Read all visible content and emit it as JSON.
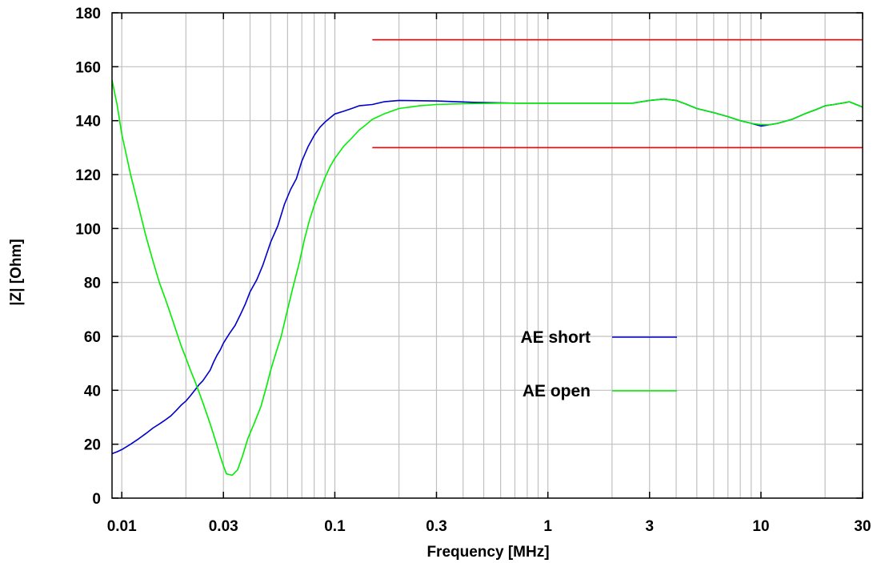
{
  "chart_data": {
    "type": "line",
    "xlabel": "Frequency [MHz]",
    "ylabel": "|Z| [Ohm]",
    "x_scale": "log",
    "xlim": [
      0.009,
      30
    ],
    "ylim": [
      0,
      180
    ],
    "x_ticks": [
      {
        "value": 0.01,
        "label": "0.01"
      },
      {
        "value": 0.03,
        "label": "0.03"
      },
      {
        "value": 0.1,
        "label": "0.1"
      },
      {
        "value": 0.3,
        "label": "0.3"
      },
      {
        "value": 1,
        "label": "1"
      },
      {
        "value": 3,
        "label": "3"
      },
      {
        "value": 10,
        "label": "10"
      },
      {
        "value": 30,
        "label": "30"
      }
    ],
    "y_ticks": [
      {
        "value": 0,
        "label": "0"
      },
      {
        "value": 20,
        "label": "20"
      },
      {
        "value": 40,
        "label": "40"
      },
      {
        "value": 60,
        "label": "60"
      },
      {
        "value": 80,
        "label": "80"
      },
      {
        "value": 100,
        "label": "100"
      },
      {
        "value": 120,
        "label": "120"
      },
      {
        "value": 140,
        "label": "140"
      },
      {
        "value": 160,
        "label": "160"
      },
      {
        "value": 180,
        "label": "180"
      }
    ],
    "grid": true,
    "legend_position": "center-right",
    "series": [
      {
        "name": "AE short",
        "color": "#0000cc",
        "points": [
          [
            0.009,
            16.5
          ],
          [
            0.0095,
            17.2
          ],
          [
            0.01,
            18
          ],
          [
            0.011,
            20
          ],
          [
            0.012,
            22
          ],
          [
            0.013,
            24
          ],
          [
            0.014,
            26
          ],
          [
            0.015,
            27.5
          ],
          [
            0.016,
            29
          ],
          [
            0.017,
            30.5
          ],
          [
            0.018,
            32.5
          ],
          [
            0.019,
            34.5
          ],
          [
            0.02,
            36
          ],
          [
            0.021,
            38
          ],
          [
            0.022,
            40
          ],
          [
            0.023,
            42
          ],
          [
            0.024,
            43.5
          ],
          [
            0.025,
            45.5
          ],
          [
            0.026,
            47.5
          ],
          [
            0.027,
            50.5
          ],
          [
            0.028,
            53
          ],
          [
            0.029,
            55
          ],
          [
            0.03,
            57.5
          ],
          [
            0.032,
            61
          ],
          [
            0.034,
            64
          ],
          [
            0.036,
            68
          ],
          [
            0.038,
            72
          ],
          [
            0.04,
            76.5
          ],
          [
            0.043,
            81
          ],
          [
            0.046,
            86.5
          ],
          [
            0.05,
            95
          ],
          [
            0.054,
            101
          ],
          [
            0.058,
            109
          ],
          [
            0.062,
            114.5
          ],
          [
            0.066,
            118.5
          ],
          [
            0.07,
            125
          ],
          [
            0.075,
            130.5
          ],
          [
            0.08,
            134.5
          ],
          [
            0.085,
            137.5
          ],
          [
            0.09,
            139.5
          ],
          [
            0.1,
            142.5
          ],
          [
            0.11,
            143.5
          ],
          [
            0.12,
            144.5
          ],
          [
            0.13,
            145.5
          ],
          [
            0.15,
            146
          ],
          [
            0.17,
            147
          ],
          [
            0.2,
            147.5
          ],
          [
            0.3,
            147.3
          ],
          [
            0.45,
            146.8
          ],
          [
            0.7,
            146.5
          ],
          [
            1,
            146.5
          ],
          [
            1.5,
            146.5
          ],
          [
            2,
            146.5
          ],
          [
            2.5,
            146.5
          ],
          [
            3,
            147.5
          ],
          [
            3.5,
            148
          ],
          [
            4,
            147.5
          ],
          [
            4.5,
            146
          ],
          [
            5,
            144.5
          ],
          [
            6,
            143
          ],
          [
            7,
            141.5
          ],
          [
            8,
            140
          ],
          [
            9,
            139
          ],
          [
            10,
            138
          ],
          [
            11,
            138.5
          ],
          [
            12,
            139
          ],
          [
            14,
            140.5
          ],
          [
            16,
            142.5
          ],
          [
            18,
            144
          ],
          [
            20,
            145.5
          ],
          [
            22,
            146
          ],
          [
            24,
            146.5
          ],
          [
            26,
            147
          ],
          [
            28,
            146
          ],
          [
            30,
            145
          ]
        ]
      },
      {
        "name": "AE open",
        "color": "#00ee00",
        "points": [
          [
            0.009,
            155
          ],
          [
            0.0095,
            146
          ],
          [
            0.01,
            135
          ],
          [
            0.011,
            120
          ],
          [
            0.012,
            108
          ],
          [
            0.013,
            97
          ],
          [
            0.014,
            88
          ],
          [
            0.015,
            80
          ],
          [
            0.016,
            74
          ],
          [
            0.017,
            68
          ],
          [
            0.018,
            62
          ],
          [
            0.019,
            56.5
          ],
          [
            0.02,
            52
          ],
          [
            0.021,
            47.5
          ],
          [
            0.022,
            43.5
          ],
          [
            0.023,
            39.5
          ],
          [
            0.024,
            35.5
          ],
          [
            0.025,
            31.5
          ],
          [
            0.026,
            27.5
          ],
          [
            0.027,
            23.5
          ],
          [
            0.028,
            19.5
          ],
          [
            0.029,
            15.5
          ],
          [
            0.03,
            12
          ],
          [
            0.031,
            9
          ],
          [
            0.033,
            8.5
          ],
          [
            0.035,
            10.5
          ],
          [
            0.037,
            16
          ],
          [
            0.039,
            22
          ],
          [
            0.042,
            28
          ],
          [
            0.045,
            34
          ],
          [
            0.048,
            42
          ],
          [
            0.05,
            47.5
          ],
          [
            0.053,
            54
          ],
          [
            0.056,
            60
          ],
          [
            0.06,
            70
          ],
          [
            0.064,
            79
          ],
          [
            0.068,
            87
          ],
          [
            0.072,
            96
          ],
          [
            0.076,
            103
          ],
          [
            0.08,
            108.5
          ],
          [
            0.085,
            114
          ],
          [
            0.09,
            119
          ],
          [
            0.095,
            123
          ],
          [
            0.1,
            126
          ],
          [
            0.11,
            130.5
          ],
          [
            0.12,
            133.5
          ],
          [
            0.13,
            136.5
          ],
          [
            0.14,
            138.5
          ],
          [
            0.15,
            140.5
          ],
          [
            0.17,
            142.5
          ],
          [
            0.2,
            144.5
          ],
          [
            0.25,
            145.5
          ],
          [
            0.3,
            146
          ],
          [
            0.4,
            146.3
          ],
          [
            0.6,
            146.5
          ],
          [
            1,
            146.5
          ],
          [
            1.5,
            146.5
          ],
          [
            2,
            146.5
          ],
          [
            2.5,
            146.5
          ],
          [
            3,
            147.5
          ],
          [
            3.5,
            148
          ],
          [
            4,
            147.5
          ],
          [
            4.5,
            146
          ],
          [
            5,
            144.5
          ],
          [
            6,
            143
          ],
          [
            7,
            141.5
          ],
          [
            8,
            140
          ],
          [
            9,
            139
          ],
          [
            10,
            138.5
          ],
          [
            11,
            138.5
          ],
          [
            12,
            139
          ],
          [
            14,
            140.5
          ],
          [
            16,
            142.5
          ],
          [
            18,
            144
          ],
          [
            20,
            145.5
          ],
          [
            22,
            146
          ],
          [
            24,
            146.5
          ],
          [
            26,
            147
          ],
          [
            28,
            146
          ],
          [
            30,
            145
          ]
        ]
      },
      {
        "color": "#ff0000",
        "points": [
          [
            0.15,
            170
          ],
          [
            30,
            170
          ]
        ]
      },
      {
        "color": "#ff0000",
        "points": [
          [
            0.15,
            130
          ],
          [
            30,
            130
          ]
        ]
      }
    ]
  }
}
